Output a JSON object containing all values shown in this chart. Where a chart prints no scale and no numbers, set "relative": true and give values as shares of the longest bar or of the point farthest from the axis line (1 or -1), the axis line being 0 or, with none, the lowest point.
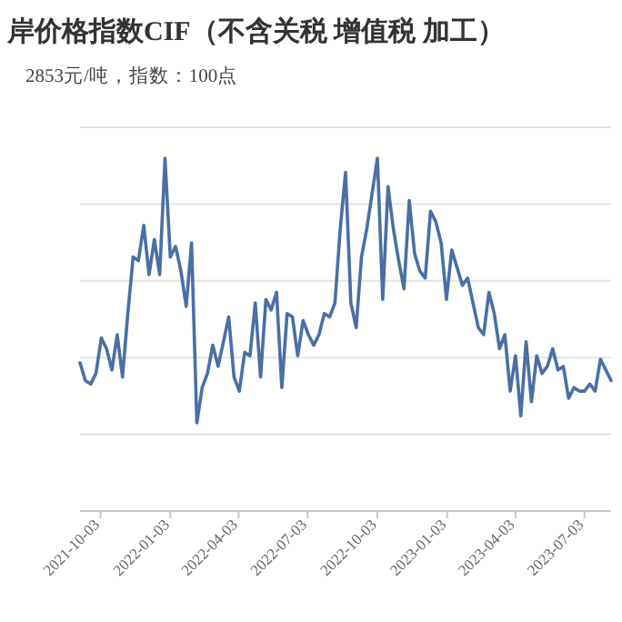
{
  "chart_data": {
    "type": "line",
    "title": "岸价格指数CIF（不含关税 增值税 加工）",
    "subtitle": "2853元/吨，指数：100点",
    "relative": true,
    "grid": "y",
    "marker": "none",
    "line_style": "solid",
    "xlim": [
      "2021-09-06",
      "2023-08-07"
    ],
    "xticks": [
      {
        "value": "2021-10-03",
        "label": "2021-10-03"
      },
      {
        "value": "2022-01-03",
        "label": "2022-01-03"
      },
      {
        "value": "2022-04-03",
        "label": "2022-04-03"
      },
      {
        "value": "2022-07-03",
        "label": "2022-07-03"
      },
      {
        "value": "2022-10-03",
        "label": "2022-10-03"
      },
      {
        "value": "2023-01-03",
        "label": "2023-01-03"
      },
      {
        "value": "2023-04-03",
        "label": "2023-04-03"
      },
      {
        "value": "2023-07-03",
        "label": "2023-07-03"
      }
    ],
    "x": [
      "2021-09-06",
      "2021-09-13",
      "2021-09-20",
      "2021-09-27",
      "2021-10-04",
      "2021-10-11",
      "2021-10-18",
      "2021-10-25",
      "2021-11-01",
      "2021-11-08",
      "2021-11-15",
      "2021-11-22",
      "2021-11-29",
      "2021-12-06",
      "2021-12-13",
      "2021-12-20",
      "2021-12-27",
      "2022-01-03",
      "2022-01-10",
      "2022-01-17",
      "2022-01-24",
      "2022-01-31",
      "2022-02-07",
      "2022-02-14",
      "2022-02-21",
      "2022-02-28",
      "2022-03-07",
      "2022-03-14",
      "2022-03-21",
      "2022-03-28",
      "2022-04-04",
      "2022-04-11",
      "2022-04-18",
      "2022-04-25",
      "2022-05-02",
      "2022-05-09",
      "2022-05-16",
      "2022-05-23",
      "2022-05-30",
      "2022-06-06",
      "2022-06-13",
      "2022-06-20",
      "2022-06-27",
      "2022-07-04",
      "2022-07-11",
      "2022-07-18",
      "2022-07-25",
      "2022-08-01",
      "2022-08-08",
      "2022-08-15",
      "2022-08-22",
      "2022-08-29",
      "2022-09-05",
      "2022-09-12",
      "2022-09-19",
      "2022-09-26",
      "2022-10-03",
      "2022-10-10",
      "2022-10-17",
      "2022-10-24",
      "2022-10-31",
      "2022-11-07",
      "2022-11-14",
      "2022-11-21",
      "2022-11-28",
      "2022-12-05",
      "2022-12-12",
      "2022-12-19",
      "2022-12-26",
      "2023-01-02",
      "2023-01-09",
      "2023-01-16",
      "2023-01-23",
      "2023-01-30",
      "2023-02-06",
      "2023-02-13",
      "2023-02-20",
      "2023-02-27",
      "2023-03-06",
      "2023-03-13",
      "2023-03-20",
      "2023-03-27",
      "2023-04-03",
      "2023-04-10",
      "2023-04-17",
      "2023-04-24",
      "2023-05-01",
      "2023-05-08",
      "2023-05-15",
      "2023-05-22",
      "2023-05-29",
      "2023-06-05",
      "2023-06-12",
      "2023-06-19",
      "2023-06-26",
      "2023-07-03",
      "2023-07-10",
      "2023-07-17",
      "2023-07-24",
      "2023-07-31",
      "2023-08-07"
    ],
    "series": [
      {
        "color": "#4a6fa5",
        "values": [
          0.42,
          0.37,
          0.36,
          0.39,
          0.49,
          0.46,
          0.4,
          0.5,
          0.38,
          0.56,
          0.72,
          0.71,
          0.81,
          0.67,
          0.77,
          0.67,
          1.0,
          0.72,
          0.75,
          0.68,
          0.58,
          0.76,
          0.25,
          0.35,
          0.39,
          0.47,
          0.41,
          0.48,
          0.55,
          0.38,
          0.34,
          0.45,
          0.44,
          0.59,
          0.38,
          0.6,
          0.57,
          0.62,
          0.35,
          0.56,
          0.55,
          0.44,
          0.54,
          0.5,
          0.47,
          0.5,
          0.56,
          0.55,
          0.59,
          0.8,
          0.96,
          0.59,
          0.52,
          0.72,
          0.8,
          0.9,
          1.0,
          0.6,
          0.92,
          0.8,
          0.71,
          0.63,
          0.88,
          0.73,
          0.68,
          0.66,
          0.85,
          0.82,
          0.76,
          0.6,
          0.74,
          0.69,
          0.64,
          0.66,
          0.59,
          0.52,
          0.5,
          0.62,
          0.56,
          0.46,
          0.5,
          0.34,
          0.44,
          0.27,
          0.48,
          0.31,
          0.44,
          0.39,
          0.41,
          0.46,
          0.4,
          0.41,
          0.32,
          0.35,
          0.34,
          0.34,
          0.36,
          0.34,
          0.43,
          0.4,
          0.37
        ]
      }
    ]
  }
}
